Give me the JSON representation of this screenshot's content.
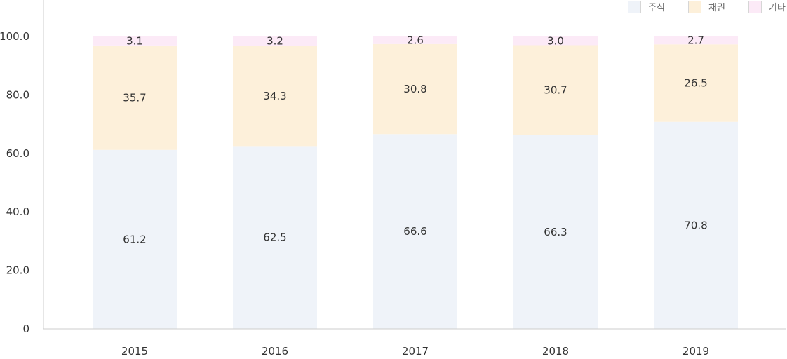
{
  "chart_data": {
    "type": "bar",
    "stacked": true,
    "categories": [
      "2015",
      "2016",
      "2017",
      "2018",
      "2019"
    ],
    "series": [
      {
        "name": "주식",
        "values": [
          61.2,
          62.5,
          66.6,
          66.3,
          70.8
        ],
        "color": "#eff3f9"
      },
      {
        "name": "채권",
        "values": [
          35.7,
          34.3,
          30.8,
          30.7,
          26.5
        ],
        "color": "#fdf0da"
      },
      {
        "name": "기타",
        "values": [
          3.1,
          3.2,
          2.6,
          3.0,
          2.7
        ],
        "color": "#fceaf7"
      }
    ],
    "yticks": [
      "0",
      "20.0",
      "40.0",
      "60.0",
      "80.0",
      "100.0"
    ],
    "ylim": [
      0,
      100
    ],
    "legend_position": "top-right",
    "grid": false
  }
}
